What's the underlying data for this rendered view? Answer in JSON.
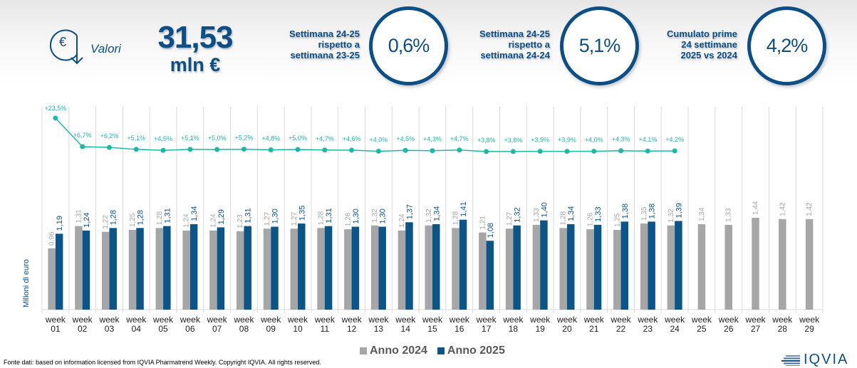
{
  "header": {
    "icon": "euro-down-arrow-icon",
    "values_label": "Valori",
    "kpi_value": "31,53",
    "kpi_unit": "mln €",
    "kpis": [
      {
        "label_lines": [
          "Settimana 24-25",
          "rispetto a",
          "settimana 23-25"
        ],
        "value": "0,6%"
      },
      {
        "label_lines": [
          "Settimana 24-25",
          "rispetto a",
          "settimana 24-24"
        ],
        "value": "5,1%"
      },
      {
        "label_lines": [
          "Cumulato prime",
          "24 settimane",
          "2025 vs 2024"
        ],
        "value": "4,2%"
      }
    ]
  },
  "colors": {
    "navy": "#0b4f86",
    "bar_2024": "#a6a6a6",
    "bar_2025": "#0b5588",
    "growth_line": "#1ab9a6"
  },
  "chart_data": {
    "type": "bar",
    "ylabel": "Milioni di euro",
    "xlabel": "",
    "grid": "vertical",
    "categories": [
      "week 01",
      "week 02",
      "week 03",
      "week 04",
      "week 05",
      "week 06",
      "week 07",
      "week 08",
      "week 09",
      "week 10",
      "week 11",
      "week 12",
      "week 13",
      "week 14",
      "week 15",
      "week 16",
      "week 17",
      "week 18",
      "week 19",
      "week 20",
      "week 21",
      "week 22",
      "week 23",
      "week 24",
      "week 25",
      "week 26",
      "week 27",
      "week 28",
      "week 29"
    ],
    "series": [
      {
        "name": "Anno 2024",
        "kind": "bar",
        "values": [
          0.96,
          1.31,
          1.22,
          1.25,
          1.28,
          1.24,
          1.24,
          1.23,
          1.27,
          1.27,
          1.28,
          1.26,
          1.32,
          1.24,
          1.32,
          1.28,
          1.21,
          1.27,
          1.33,
          1.28,
          1.26,
          1.25,
          1.35,
          1.32,
          1.34,
          1.33,
          1.44,
          1.42,
          1.42
        ],
        "labels": [
          "0,96",
          "1,31",
          "1,22",
          "1,25",
          "1,28",
          "1,24",
          "1,24",
          "1,23",
          "1,27",
          "1,27",
          "1,28",
          "1,26",
          "1,32",
          "1,24",
          "1,32",
          "1,28",
          "1,21",
          "1,27",
          "1,33",
          "1,28",
          "1,26",
          "1,25",
          "1,35",
          "1,32",
          "1,34",
          "1,33",
          "1,44",
          "1,42",
          "1,42"
        ]
      },
      {
        "name": "Anno 2025",
        "kind": "bar",
        "values": [
          1.19,
          1.24,
          1.28,
          1.28,
          1.31,
          1.34,
          1.29,
          1.31,
          1.3,
          1.35,
          1.31,
          1.3,
          1.3,
          1.37,
          1.34,
          1.41,
          1.08,
          1.32,
          1.4,
          1.34,
          1.33,
          1.38,
          1.38,
          1.39
        ],
        "labels": [
          "1,19",
          "1,24",
          "1,28",
          "1,28",
          "1,31",
          "1,34",
          "1,29",
          "1,31",
          "1,30",
          "1,35",
          "1,31",
          "1,30",
          "1,30",
          "1,37",
          "1,34",
          "1,41",
          "1,08",
          "1,32",
          "1,40",
          "1,34",
          "1,33",
          "1,38",
          "1,38",
          "1,39"
        ]
      },
      {
        "name": "Crescita % 2025 vs 2024",
        "kind": "line",
        "values": [
          23.5,
          6.7,
          6.2,
          5.1,
          4.5,
          5.1,
          5.0,
          5.2,
          4.8,
          5.0,
          4.7,
          4.6,
          4.0,
          4.5,
          4.3,
          4.7,
          3.8,
          3.8,
          3.9,
          3.9,
          4.0,
          4.3,
          4.1,
          4.2
        ],
        "labels": [
          "+23,5%",
          "+6,7%",
          "+6,2%",
          "+5,1%",
          "+4,5%",
          "+5,1%",
          "+5,0%",
          "+5,2%",
          "+4,8%",
          "+5,0%",
          "+4,7%",
          "+4,6%",
          "+4,0%",
          "+4,5%",
          "+4,3%",
          "+4,7%",
          "+3,8%",
          "+3,8%",
          "+3,9%",
          "+3,9%",
          "+4,0%",
          "+4,3%",
          "+4,1%",
          "+4,2%"
        ]
      }
    ],
    "tick_labels": [
      [
        "week",
        "01"
      ],
      [
        "week",
        "02"
      ],
      [
        "week",
        "03"
      ],
      [
        "week",
        "04"
      ],
      [
        "week",
        "05"
      ],
      [
        "week",
        "06"
      ],
      [
        "week",
        "07"
      ],
      [
        "week",
        "08"
      ],
      [
        "week",
        "09"
      ],
      [
        "week",
        "10"
      ],
      [
        "week",
        "11"
      ],
      [
        "week",
        "12"
      ],
      [
        "week",
        "13"
      ],
      [
        "week",
        "14"
      ],
      [
        "week",
        "15"
      ],
      [
        "week",
        "16"
      ],
      [
        "week",
        "17"
      ],
      [
        "week",
        "18"
      ],
      [
        "week",
        "19"
      ],
      [
        "week",
        "20"
      ],
      [
        "week",
        "21"
      ],
      [
        "week",
        "22"
      ],
      [
        "week",
        "23"
      ],
      [
        "week",
        "24"
      ],
      [
        "week",
        "25"
      ],
      [
        "week",
        "26"
      ],
      [
        "week",
        "27"
      ],
      [
        "week",
        "28"
      ],
      [
        "week",
        "29"
      ]
    ],
    "legend": {
      "placement": "bottom",
      "entries": [
        "Anno 2024",
        "Anno 2025"
      ]
    }
  },
  "footer": {
    "source_note": "Fonte dati: based on information licensed from IQVIA Pharmatrend Weekly. Copyright IQVIA. All rights reserved.",
    "logo_text": "IQVIA"
  }
}
